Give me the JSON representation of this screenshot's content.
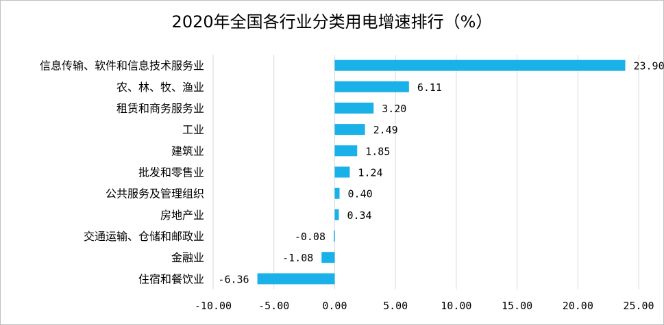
{
  "chart_data": {
    "type": "bar",
    "orientation": "horizontal",
    "title": "2020年全国各行业分类用电增速排行（%）",
    "categories": [
      "信息传输、软件和信息技术服务业",
      "农、林、牧、渔业",
      "租赁和商务服务业",
      "工业",
      "建筑业",
      "批发和零售业",
      "公共服务及管理组织",
      "房地产业",
      "交通运输、仓储和邮政业",
      "金融业",
      "住宿和餐饮业"
    ],
    "values": [
      23.9,
      6.11,
      3.2,
      2.49,
      1.85,
      1.24,
      0.4,
      0.34,
      -0.08,
      -1.08,
      -6.36
    ],
    "value_labels": [
      "23.90",
      "6.11",
      "3.20",
      "2.49",
      "1.85",
      "1.24",
      "0.40",
      "0.34",
      "-0.08",
      "-1.08",
      "-6.36"
    ],
    "xlim": [
      -10,
      25
    ],
    "x_ticks": [
      -10,
      -5,
      0,
      5,
      10,
      15,
      20,
      25
    ],
    "x_tick_labels": [
      "-10.00",
      "-5.00",
      "0.00",
      "5.00",
      "10.00",
      "15.00",
      "20.00",
      "25.00"
    ],
    "grid": "vertical",
    "bar_color": "#1ab0e8",
    "grid_color": "#d9d9d9"
  }
}
